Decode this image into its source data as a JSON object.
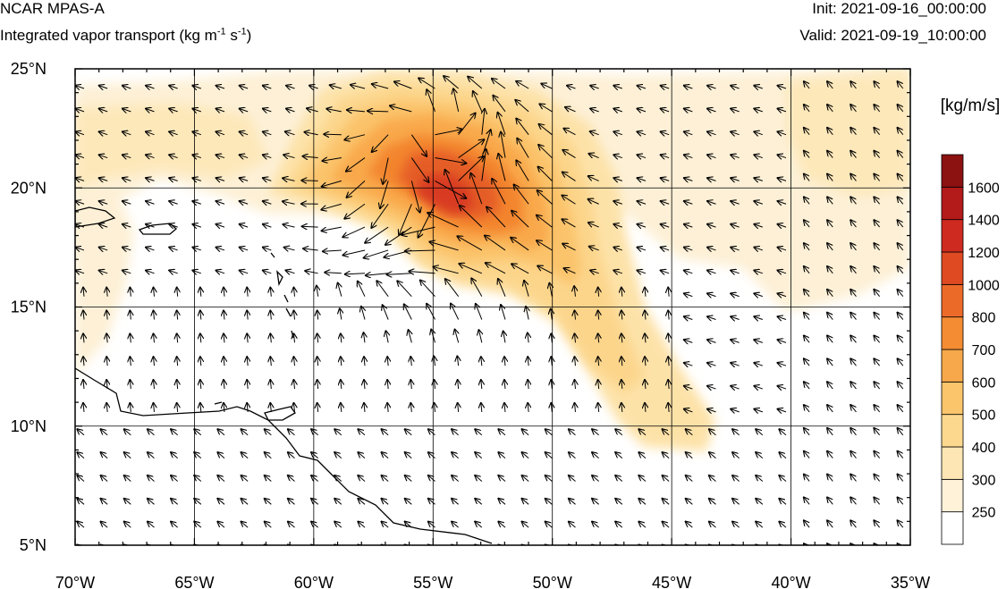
{
  "header": {
    "model": "NCAR MPAS-A",
    "field_prefix": "Integrated vapor transport (kg m",
    "field_exp1": "-1",
    "field_mid": " s",
    "field_exp2": "-1",
    "field_suffix": ")",
    "init": "Init: 2021-09-16_00:00:00",
    "valid": "Valid: 2021-09-19_10:00:00"
  },
  "map": {
    "lon_range": [
      -70,
      -35
    ],
    "lat_range": [
      5,
      25
    ],
    "lon_ticks": [
      {
        "value": -70,
        "label": "70°W"
      },
      {
        "value": -65,
        "label": "65°W"
      },
      {
        "value": -60,
        "label": "60°W"
      },
      {
        "value": -55,
        "label": "55°W"
      },
      {
        "value": -50,
        "label": "50°W"
      },
      {
        "value": -45,
        "label": "45°W"
      },
      {
        "value": -40,
        "label": "40°W"
      },
      {
        "value": -35,
        "label": "35°W"
      }
    ],
    "lat_ticks": [
      {
        "value": 5,
        "label": "5°N"
      },
      {
        "value": 10,
        "label": "10°N"
      },
      {
        "value": 15,
        "label": "15°N"
      },
      {
        "value": 20,
        "label": "20°N"
      },
      {
        "value": 25,
        "label": "25°N"
      }
    ],
    "gridlines": true
  },
  "colorbar": {
    "units": "[kg/m/s]",
    "levels": [
      250,
      300,
      400,
      500,
      600,
      700,
      800,
      1000,
      1200,
      1400,
      1600
    ],
    "colors": [
      "#ffffff",
      "#fff2d9",
      "#fde6b3",
      "#fcd88f",
      "#fbc56b",
      "#f7a84a",
      "#f48c33",
      "#ec6a28",
      "#df4a22",
      "#cf2a20",
      "#b31a1a",
      "#8c1212"
    ]
  }
}
